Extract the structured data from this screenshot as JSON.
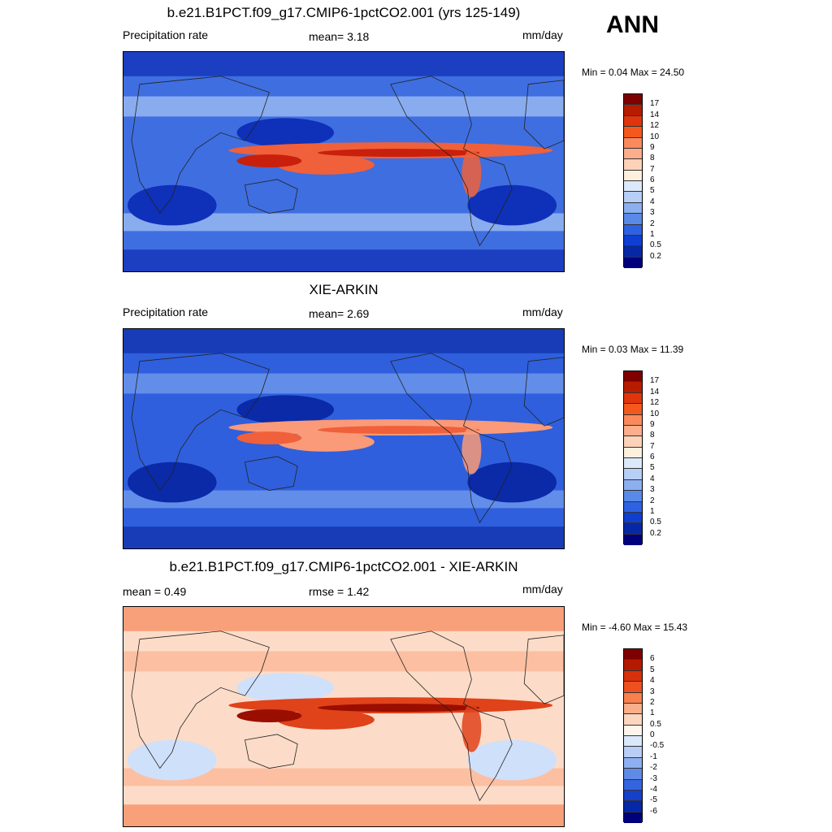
{
  "season": "ANN",
  "panels": [
    {
      "title": "b.e21.B1PCT.f09_g17.CMIP6-1pctCO2.001 (yrs 125-149)",
      "left": "Precipitation rate",
      "center": "mean=   3.18",
      "units": "mm/day",
      "minmax": "Min =   0.04 Max =  24.50",
      "colorbar": {
        "levels": [
          "17",
          "14",
          "12",
          "10",
          "9",
          "8",
          "7",
          "6",
          "5",
          "4",
          "3",
          "2",
          "1",
          "0.5",
          "0.2"
        ],
        "colors": [
          "#7f0000",
          "#b71c00",
          "#e0350c",
          "#f4581c",
          "#fa8a5c",
          "#fcae8c",
          "#fdd2b8",
          "#fff0de",
          "#dce9fb",
          "#b7cff7",
          "#8caff0",
          "#5a8ae8",
          "#2e62e2",
          "#0f3fd1",
          "#0628a6",
          "#01007c"
        ]
      },
      "field": {
        "ocean": "#3f6ee0",
        "poles": "#1b3fc0",
        "itcz": "#f0603a",
        "itcz_core": "#c8200c",
        "storm": "#9cbcf2",
        "dry": "#0f30b8"
      }
    },
    {
      "title": "XIE-ARKIN",
      "left": "Precipitation rate",
      "center": "mean=   2.69",
      "units": "mm/day",
      "minmax": "Min =   0.03 Max =  11.39",
      "colorbar": {
        "levels": [
          "17",
          "14",
          "12",
          "10",
          "9",
          "8",
          "7",
          "6",
          "5",
          "4",
          "3",
          "2",
          "1",
          "0.5",
          "0.2"
        ],
        "colors": [
          "#7f0000",
          "#b71c00",
          "#e0350c",
          "#f4581c",
          "#fa8a5c",
          "#fcae8c",
          "#fdd2b8",
          "#fff0de",
          "#dce9fb",
          "#b7cff7",
          "#8caff0",
          "#5a8ae8",
          "#2e62e2",
          "#0f3fd1",
          "#0628a6",
          "#01007c"
        ]
      },
      "field": {
        "ocean": "#2f5fdc",
        "poles": "#183cb8",
        "itcz": "#fa9a78",
        "itcz_core": "#f0603a",
        "storm": "#6f98ec",
        "dry": "#0a2aa8"
      }
    },
    {
      "title": "b.e21.B1PCT.f09_g17.CMIP6-1pctCO2.001 - XIE-ARKIN",
      "left": "mean =   0.49",
      "center": "rmse =   1.42",
      "units": "mm/day",
      "minmax": "Min =  -4.60 Max =  15.43",
      "colorbar": {
        "levels": [
          "6",
          "5",
          "4",
          "3",
          "2",
          "1",
          "0.5",
          "0",
          "-0.5",
          "-1",
          "-2",
          "-3",
          "-4",
          "-5",
          "-6"
        ],
        "colors": [
          "#7f0000",
          "#b41a00",
          "#d8300a",
          "#ee5020",
          "#f8804e",
          "#fbae8a",
          "#fdd6c0",
          "#fff5ec",
          "#dbe8fb",
          "#b8cef6",
          "#8eb0f0",
          "#5f8be6",
          "#3465de",
          "#1640cc",
          "#0628a6",
          "#01007c"
        ]
      },
      "field": {
        "ocean": "#fcdcc8",
        "poles": "#f8a07a",
        "itcz": "#e0421a",
        "itcz_core": "#9a0e00",
        "storm": "#fbb898",
        "dry": "#cfe0fa"
      }
    }
  ]
}
